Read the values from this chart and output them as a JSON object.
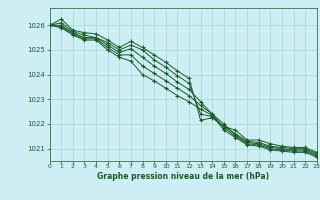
{
  "background_color": "#cdeef5",
  "grid_color": "#a8d8c8",
  "line_color": "#1a5c28",
  "marker_color": "#1a5c28",
  "xlabel": "Graphe pression niveau de la mer (hPa)",
  "xlabel_color": "#1a5c28",
  "tick_color": "#1a5c28",
  "xlim": [
    0,
    23
  ],
  "ylim": [
    1020.5,
    1026.7
  ],
  "yticks": [
    1021,
    1022,
    1023,
    1024,
    1025,
    1026
  ],
  "xticks": [
    0,
    1,
    2,
    3,
    4,
    5,
    6,
    7,
    8,
    9,
    10,
    11,
    12,
    13,
    14,
    15,
    16,
    17,
    18,
    19,
    20,
    21,
    22,
    23
  ],
  "series": [
    [
      1026.0,
      1026.25,
      1025.8,
      1025.7,
      1025.65,
      1025.4,
      1025.1,
      1025.35,
      1025.1,
      1024.8,
      1024.5,
      1024.15,
      1023.85,
      1022.15,
      1022.25,
      1021.9,
      1021.75,
      1021.35,
      1021.35,
      1021.2,
      1021.1,
      1021.05,
      1021.05,
      1020.85
    ],
    [
      1026.0,
      1026.1,
      1025.75,
      1025.6,
      1025.5,
      1025.3,
      1025.0,
      1025.2,
      1025.0,
      1024.6,
      1024.3,
      1023.95,
      1023.65,
      1022.4,
      1022.3,
      1021.9,
      1021.6,
      1021.3,
      1021.25,
      1021.1,
      1021.05,
      1021.0,
      1021.0,
      1020.8
    ],
    [
      1026.0,
      1026.0,
      1025.7,
      1025.5,
      1025.5,
      1025.2,
      1024.9,
      1025.05,
      1024.7,
      1024.35,
      1024.05,
      1023.7,
      1023.4,
      1022.9,
      1022.4,
      1022.0,
      1021.55,
      1021.25,
      1021.2,
      1021.05,
      1021.0,
      1020.95,
      1020.95,
      1020.75
    ],
    [
      1026.0,
      1025.95,
      1025.65,
      1025.45,
      1025.45,
      1025.1,
      1024.8,
      1024.8,
      1024.35,
      1024.05,
      1023.75,
      1023.45,
      1023.15,
      1022.75,
      1022.4,
      1021.85,
      1021.5,
      1021.2,
      1021.15,
      1021.0,
      1020.95,
      1020.9,
      1020.9,
      1020.7
    ],
    [
      1026.0,
      1025.9,
      1025.6,
      1025.4,
      1025.4,
      1025.0,
      1024.7,
      1024.55,
      1024.0,
      1023.75,
      1023.45,
      1023.15,
      1022.9,
      1022.6,
      1022.35,
      1021.75,
      1021.45,
      1021.15,
      1021.1,
      1020.95,
      1020.9,
      1020.85,
      1020.85,
      1020.65
    ]
  ]
}
